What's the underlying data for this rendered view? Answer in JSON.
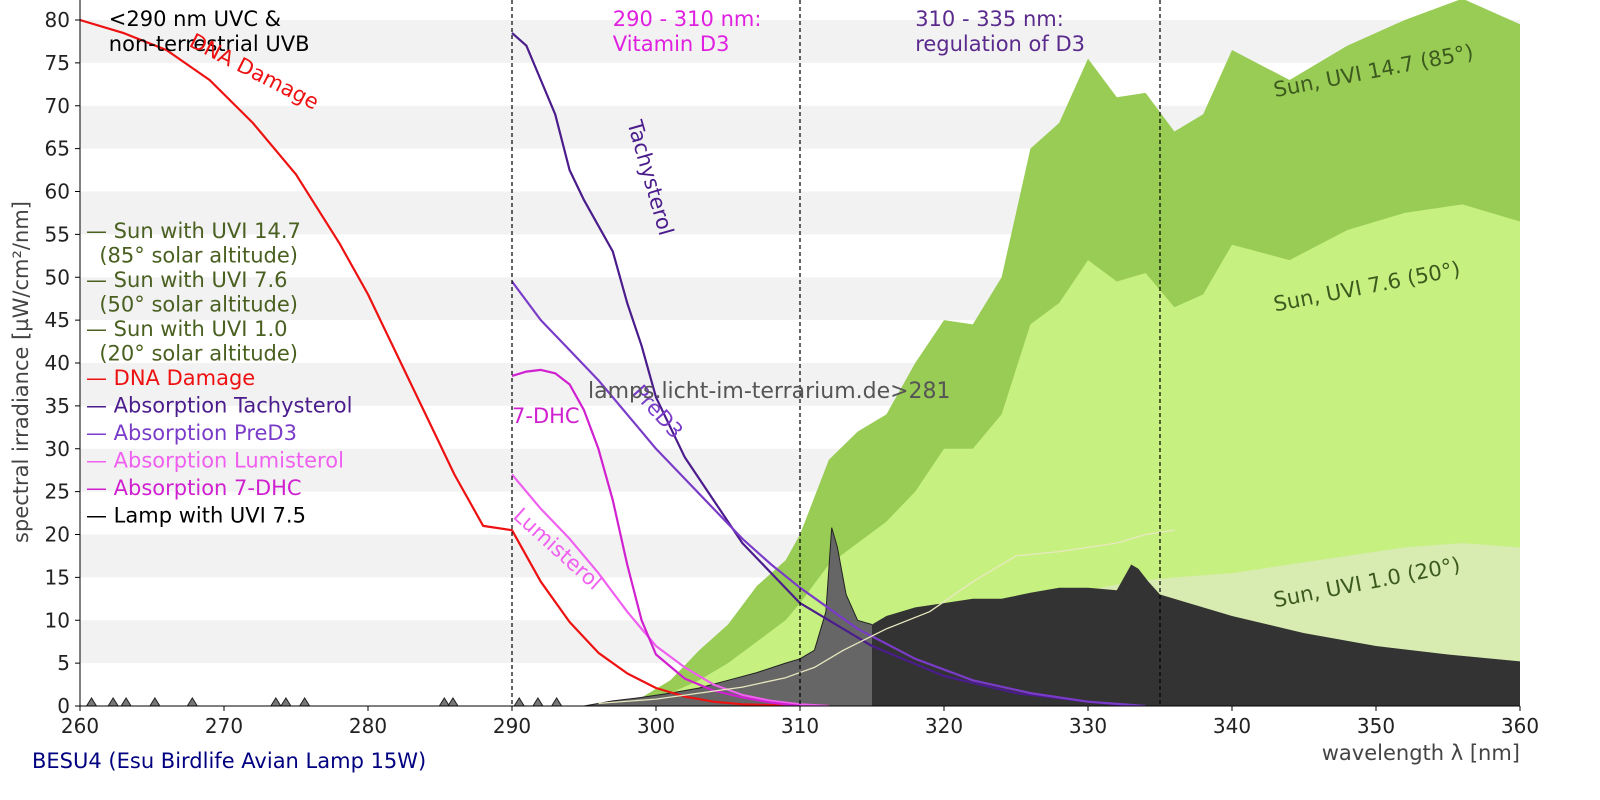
{
  "chart_data": {
    "type": "area",
    "xlabel": "wavelength λ [nm]",
    "ylabel": "spectral irradiance [µW/cm²/nm]",
    "xlim": [
      260,
      360
    ],
    "ylim": [
      0,
      80
    ],
    "x_ticks": [
      260,
      270,
      280,
      290,
      300,
      310,
      320,
      330,
      340,
      350,
      360
    ],
    "y_ticks": [
      0,
      5,
      10,
      15,
      20,
      25,
      30,
      35,
      40,
      45,
      50,
      55,
      60,
      65,
      70,
      75,
      80
    ],
    "grid": "horizontal alternating bands",
    "legend_position": "left",
    "region_lines": [
      290,
      310,
      335
    ],
    "region_labels": [
      {
        "x": 262,
        "lines": [
          "<290 nm UVC &",
          "non-terrestrial UVB"
        ],
        "color": "#000000"
      },
      {
        "x": 297,
        "lines": [
          "290 - 310 nm:",
          "Vitamin D3"
        ],
        "color": "#e020e0"
      },
      {
        "x": 318,
        "lines": [
          "310 - 335 nm:",
          "regulation of D3"
        ],
        "color": "#5a2a8c"
      }
    ],
    "legend": [
      {
        "lines": [
          "— Sun with UVI 14.7",
          "  (85° solar altitude)"
        ],
        "color": "#4a6020"
      },
      {
        "lines": [
          "— Sun with UVI 7.6",
          "  (50° solar altitude)"
        ],
        "color": "#4a6020"
      },
      {
        "lines": [
          "— Sun with UVI 1.0",
          "  (20° solar altitude)"
        ],
        "color": "#4a6020"
      },
      {
        "lines": [
          "— DNA Damage"
        ],
        "color": "#ee1111"
      },
      {
        "lines": [
          "— Absorption Tachysterol"
        ],
        "color": "#4b1c8c"
      },
      {
        "lines": [
          "— Absorption PreD3"
        ],
        "color": "#7a3cc8"
      },
      {
        "lines": [
          "— Absorption Lumisterol"
        ],
        "color": "#f060f0"
      },
      {
        "lines": [
          "— Absorption 7-DHC"
        ],
        "color": "#d020d0"
      },
      {
        "lines": [
          "— Lamp with UVI 7.5"
        ],
        "color": "#000000"
      }
    ],
    "series": [
      {
        "key": "sun85",
        "kind": "area",
        "color": "#99cc55",
        "x": [
          298,
          301,
          303,
          305,
          307,
          309,
          310,
          312,
          314,
          316,
          318,
          320,
          322,
          324,
          326,
          328,
          330,
          332,
          334,
          336,
          338,
          340,
          344,
          348,
          352,
          356,
          360
        ],
        "y": [
          0,
          3,
          6.5,
          9.5,
          14,
          17,
          20,
          28.7,
          32,
          34,
          40,
          45,
          44.5,
          50,
          65,
          68,
          75.5,
          71,
          71.5,
          67,
          69,
          76.5,
          73,
          77,
          80,
          82.5,
          79.5
        ]
      },
      {
        "key": "sun50",
        "kind": "area",
        "color": "#c6f080",
        "x": [
          298,
          301,
          303,
          305,
          307,
          309,
          310,
          312,
          314,
          316,
          318,
          320,
          322,
          324,
          326,
          328,
          330,
          332,
          334,
          336,
          338,
          340,
          344,
          348,
          352,
          356,
          360
        ],
        "y": [
          0,
          1.5,
          3,
          5,
          7.5,
          10,
          12,
          16.5,
          19,
          21.5,
          25,
          30,
          30,
          34,
          44.5,
          47,
          52,
          49.5,
          50.5,
          46.5,
          48,
          53.8,
          52,
          55.5,
          57.5,
          58.5,
          56.5
        ]
      },
      {
        "key": "sun20",
        "kind": "area",
        "color": "#d8ebb0",
        "x": [
          300,
          303,
          306,
          309,
          310,
          312,
          315,
          318,
          321,
          324,
          327,
          330,
          333,
          336,
          340,
          344,
          348,
          352,
          356,
          360
        ],
        "y": [
          0,
          0.6,
          1.2,
          2.2,
          2.6,
          3.5,
          5,
          6.5,
          8,
          10,
          12.5,
          13.5,
          14.5,
          15,
          15.5,
          16.5,
          17.5,
          18.5,
          19,
          18.5
        ]
      },
      {
        "key": "lamp",
        "kind": "area",
        "color": "#333333",
        "x": [
          295,
          297,
          299,
          301,
          303,
          305,
          307,
          309,
          310,
          311,
          311.8,
          312.2,
          312.6,
          313.2,
          314,
          315,
          316,
          318,
          320,
          322,
          324,
          326,
          328,
          330,
          332,
          333,
          333.5,
          334.2,
          335,
          337,
          340,
          345,
          350,
          355,
          360
        ],
        "y": [
          0,
          0.6,
          1,
          1.5,
          2.1,
          3,
          3.9,
          5,
          5.5,
          6.5,
          11,
          20.8,
          18.5,
          13,
          10,
          9.5,
          10.5,
          11.5,
          12,
          12.5,
          12.5,
          13.2,
          13.8,
          13.8,
          13.5,
          16.5,
          16,
          14.5,
          13,
          12,
          10.5,
          8.5,
          7,
          6,
          5.2
        ]
      },
      {
        "key": "dna",
        "kind": "line",
        "color": "#ee1111",
        "x": [
          260,
          263,
          266,
          269,
          272,
          275,
          278,
          280,
          282,
          284,
          286,
          288,
          290,
          292,
          294,
          296,
          298,
          300,
          302,
          304,
          306,
          308,
          310,
          312
        ],
        "y": [
          80,
          78.5,
          76.5,
          73,
          68,
          62,
          54,
          48,
          41,
          34,
          27,
          21,
          20.5,
          14.5,
          9.8,
          6.2,
          3.8,
          2.1,
          1.1,
          0.5,
          0.2,
          0.1,
          0.05,
          0
        ]
      },
      {
        "key": "tachy",
        "kind": "line",
        "color": "#4b1c8c",
        "x": [
          290,
          291,
          292,
          293,
          294,
          295,
          296,
          297,
          298,
          299,
          300,
          302,
          304,
          306,
          308,
          310,
          315,
          320,
          325,
          330,
          333
        ],
        "y": [
          78.5,
          77,
          73,
          69,
          62.5,
          59,
          56,
          53,
          47,
          42,
          36,
          29,
          24,
          19,
          15.5,
          12,
          7,
          3.5,
          1.5,
          0.5,
          0
        ]
      },
      {
        "key": "pred3",
        "kind": "line",
        "color": "#7a3cc8",
        "x": [
          290,
          292,
          294,
          296,
          298,
          300,
          302,
          304,
          306,
          308,
          310,
          314,
          318,
          322,
          326,
          330,
          334
        ],
        "y": [
          49.5,
          45,
          41.5,
          38,
          34,
          30,
          26.5,
          23,
          19.5,
          16.5,
          13.8,
          9,
          5.5,
          3,
          1.5,
          0.5,
          0
        ]
      },
      {
        "key": "lumi",
        "kind": "line",
        "color": "#f060f0",
        "x": [
          290,
          292,
          294,
          296,
          298,
          300,
          302,
          304,
          306,
          308,
          310,
          312
        ],
        "y": [
          27,
          23,
          19.5,
          15.5,
          11,
          7,
          4.5,
          2.5,
          1.3,
          0.6,
          0.2,
          0
        ]
      },
      {
        "key": "dhc",
        "kind": "line",
        "color": "#d020d0",
        "x": [
          290,
          291,
          292,
          293,
          294,
          295,
          296,
          297,
          298,
          299,
          300,
          302,
          304,
          306,
          308,
          310
        ],
        "y": [
          38.5,
          39,
          39.2,
          38.8,
          37.5,
          34.5,
          30,
          24,
          16.5,
          10,
          6,
          3.2,
          1.8,
          1,
          0.4,
          0
        ]
      },
      {
        "key": "lampD3",
        "kind": "line",
        "color": "#e8e8c0",
        "x": [
          296,
          300,
          303,
          306,
          309,
          311,
          313,
          316,
          319,
          322,
          325,
          328,
          330,
          332,
          334,
          336
        ],
        "y": [
          0.3,
          0.8,
          1.5,
          2.2,
          3.3,
          4.5,
          6.5,
          9,
          11,
          14.5,
          17.5,
          18,
          18.5,
          19,
          20,
          20.5
        ]
      }
    ],
    "sun_labels": [
      {
        "text": "Sun, UVI 14.7 (85°)",
        "x": 343,
        "y": 71
      },
      {
        "text": "Sun, UVI 7.6 (50°)",
        "x": 343,
        "y": 46
      },
      {
        "text": "Sun, UVI 1.0 (20°)",
        "x": 343,
        "y": 11.5
      }
    ],
    "curve_labels": [
      {
        "text": "DNA Damage",
        "x": 267.5,
        "y": 77,
        "angle": 27,
        "color": "#ee1111"
      },
      {
        "text": "Tachysterol",
        "x": 298,
        "y": 68,
        "angle": 74,
        "color": "#4b1c8c"
      },
      {
        "text": "PreD3",
        "x": 298.3,
        "y": 36.5,
        "angle": 48,
        "color": "#7a3cc8"
      },
      {
        "text": "7-DHC",
        "x": 290,
        "y": 33,
        "angle": 0,
        "color": "#d020d0"
      },
      {
        "text": "Lumisterol",
        "x": 290,
        "y": 22,
        "angle": 42,
        "color": "#f060f0"
      }
    ],
    "watermark": "lamps.licht-im-terrarium.de>281",
    "footer": "BESU4 (Esu Birdlife Avian Lamp 15W)"
  },
  "colors": {
    "band": "#f2f2f2",
    "lamp_d3_fill": "#666666",
    "footer": "#000080"
  }
}
